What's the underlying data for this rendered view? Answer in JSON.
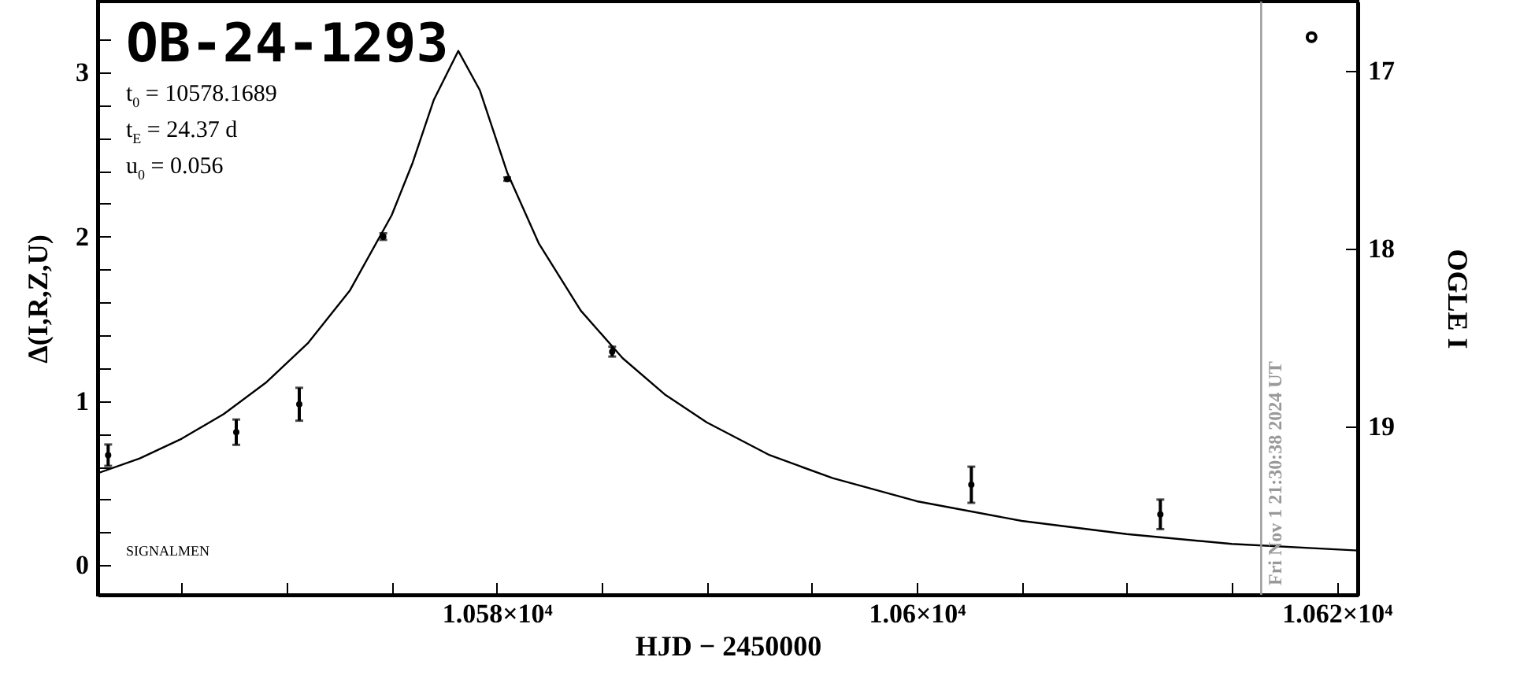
{
  "chart_data": {
    "type": "scatter",
    "title": "OB-24-1293",
    "xlabel": "HJD − 2450000",
    "ylabel": "Δ(I,R,Z,U)",
    "y2label": "OGLE I",
    "annotations": [
      "t$_{0}$ = 10578.1689",
      "t$_{E}$ = 24.37 d",
      "u$_{0}$ = 0.056",
      "SIGNALMEN",
      {
        "text": "Fri Nov  1 21:30:38 2024 UT",
        "x": 10616.4
      }
    ],
    "xlim": [
      10561,
      10621
    ],
    "xticks": [
      {
        "value": 10565,
        "label": null
      },
      {
        "value": 10570,
        "label": null
      },
      {
        "value": 10575,
        "label": null
      },
      {
        "value": 10580,
        "label": "1.058×10⁴"
      },
      {
        "value": 10585,
        "label": null
      },
      {
        "value": 10590,
        "label": null
      },
      {
        "value": 10595,
        "label": null
      },
      {
        "value": 10600,
        "label": "1.06×10⁴"
      },
      {
        "value": 10605,
        "label": null
      },
      {
        "value": 10610,
        "label": null
      },
      {
        "value": 10615,
        "label": null
      },
      {
        "value": 10620,
        "label": "1.062×10⁴"
      }
    ],
    "ylim": [
      -0.18,
      3.43
    ],
    "yticks": [
      0,
      {
        "value": 0.2,
        "label": null
      },
      {
        "value": 0.4,
        "label": null
      },
      {
        "value": 0.6,
        "label": null
      },
      {
        "value": 0.8,
        "label": null
      },
      1,
      {
        "value": 1.2,
        "label": null
      },
      {
        "value": 1.4,
        "label": null
      },
      {
        "value": 1.6,
        "label": null
      },
      {
        "value": 1.8,
        "label": null
      },
      2,
      {
        "value": 2.2,
        "label": null
      },
      {
        "value": 2.4,
        "label": null
      },
      {
        "value": 2.6,
        "label": null
      },
      {
        "value": 2.8,
        "label": null
      },
      3,
      {
        "value": 3.2,
        "label": null
      }
    ],
    "y2lim": [
      19.95,
      16.61
    ],
    "y2ticks": [
      17,
      18,
      19
    ],
    "grid": false,
    "ref_lines": [
      {
        "axis": "x",
        "value": 10616.4,
        "color": "#999999"
      }
    ],
    "series": [
      {
        "color": "#000000",
        "marker": "circle",
        "x": [
          10561.5,
          10567.6,
          10570.6,
          10574.6,
          10580.5,
          10585.5,
          10602.6,
          10611.6
        ],
        "values": [
          0.67,
          0.81,
          0.98,
          2.0,
          2.35,
          1.3,
          0.49,
          0.31
        ],
        "errors": [
          0.065,
          0.077,
          0.1,
          0.02,
          0.01,
          0.03,
          0.11,
          0.09
        ]
      },
      {
        "type": "line",
        "color": "#000000",
        "marker": "none",
        "x": [
          10561,
          10563,
          10565,
          10567,
          10569,
          10571,
          10573,
          10575,
          10576,
          10577,
          10578.17,
          10579.2,
          10580.5,
          10582,
          10584,
          10586,
          10588,
          10590,
          10593,
          10596,
          10600,
          10605,
          10610,
          10615,
          10621
        ],
        "values": [
          0.56,
          0.65,
          0.77,
          0.92,
          1.11,
          1.35,
          1.67,
          2.13,
          2.45,
          2.83,
          3.13,
          2.89,
          2.39,
          1.96,
          1.55,
          1.26,
          1.04,
          0.87,
          0.67,
          0.53,
          0.39,
          0.27,
          0.19,
          0.13,
          0.09
        ]
      },
      {
        "type": "scatter",
        "axis": "y2",
        "color": "#000000",
        "marker": "circle",
        "x": [
          10618.8
        ],
        "values": [
          16.81
        ]
      }
    ]
  }
}
